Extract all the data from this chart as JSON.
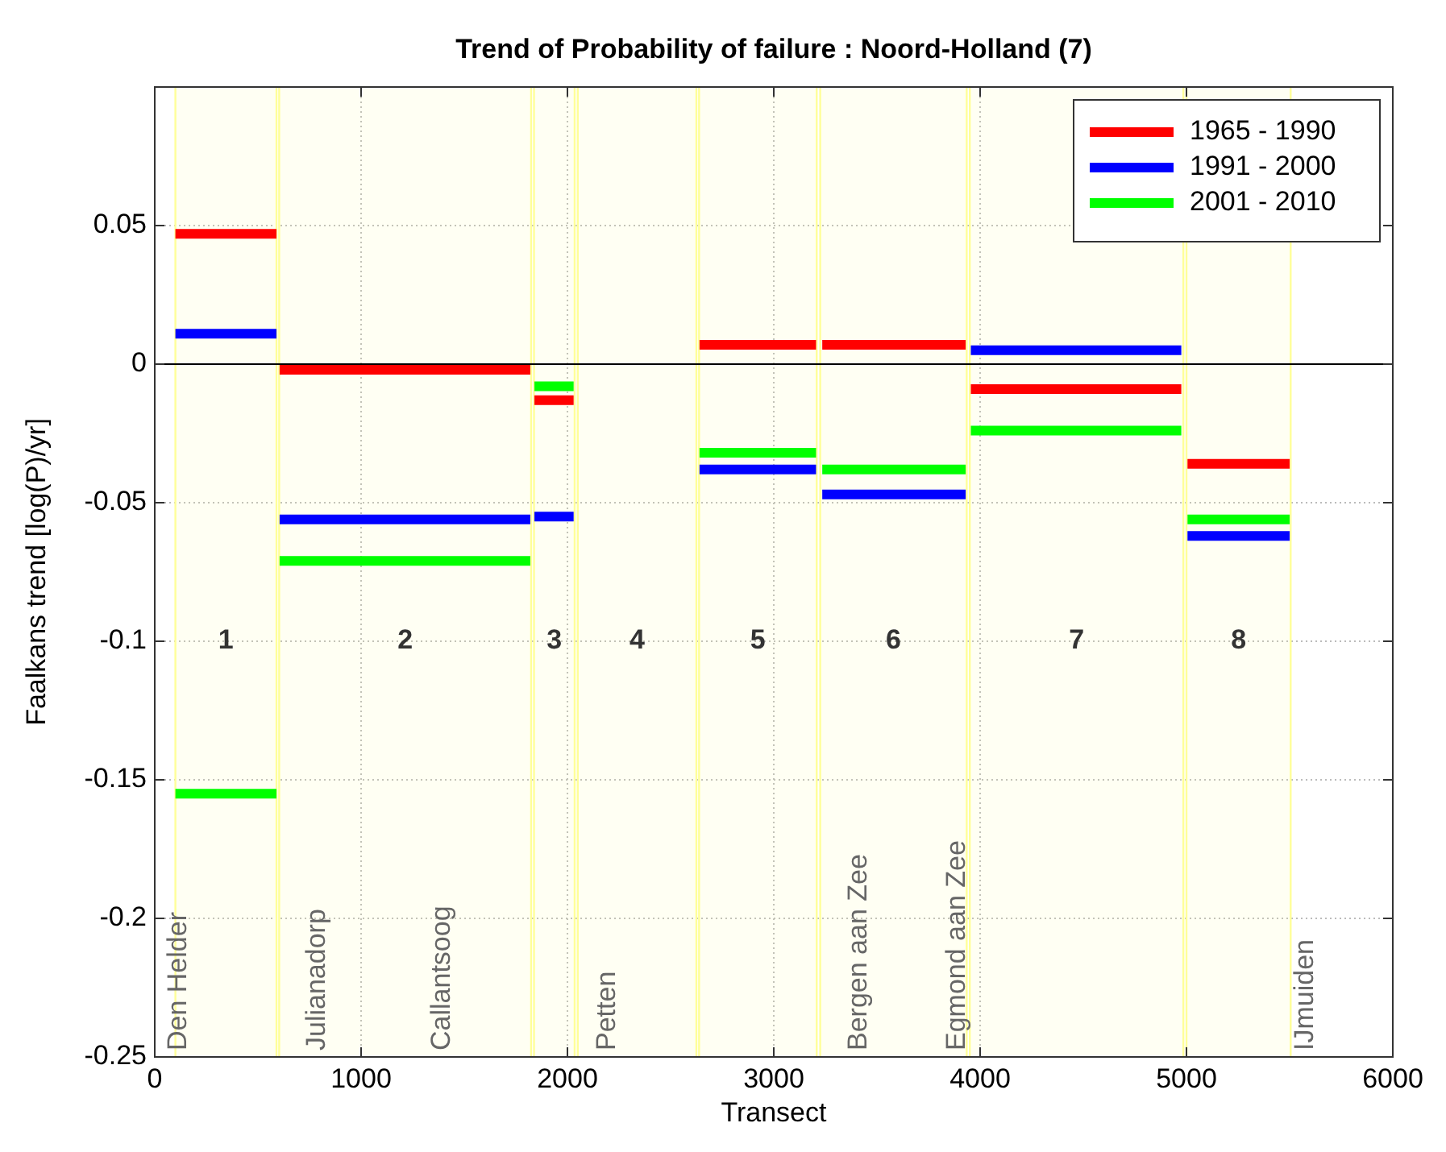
{
  "chart_data": {
    "type": "line",
    "title": "Trend of Probability of failure : Noord-Holland (7)",
    "xlabel": "Transect",
    "ylabel": "Faalkans trend [log(P)/yr]",
    "xlim": [
      0,
      6000
    ],
    "xticks": [
      0,
      1000,
      2000,
      3000,
      4000,
      5000,
      6000
    ],
    "ylim": [
      -0.25,
      0.1
    ],
    "yticks": [
      -0.25,
      -0.2,
      -0.15,
      -0.1,
      -0.05,
      0,
      0.05
    ],
    "grid": true,
    "legend": "top right",
    "marker": "none",
    "line_style": "solid",
    "series": [
      {
        "name": "1965 - 1990",
        "color": "#ff0000",
        "x": [
          100,
          590,
          null,
          605,
          1820,
          null,
          1840,
          2030,
          null,
          2640,
          3205,
          null,
          3235,
          3930,
          null,
          3955,
          4975,
          null,
          5005,
          5500
        ],
        "values": [
          0.047,
          0.047,
          null,
          -0.002,
          -0.002,
          null,
          -0.013,
          -0.013,
          null,
          0.007,
          0.007,
          null,
          0.007,
          0.007,
          null,
          -0.009,
          -0.009,
          null,
          -0.036,
          -0.036
        ]
      },
      {
        "name": "1991 - 2000",
        "color": "#0000ff",
        "x": [
          100,
          590,
          null,
          605,
          1820,
          null,
          1840,
          2030,
          null,
          2640,
          3205,
          null,
          3235,
          3930,
          null,
          3955,
          4975,
          null,
          5005,
          5500
        ],
        "values": [
          0.011,
          0.011,
          null,
          -0.056,
          -0.056,
          null,
          -0.055,
          -0.055,
          null,
          -0.038,
          -0.038,
          null,
          -0.047,
          -0.047,
          null,
          0.005,
          0.005,
          null,
          -0.062,
          -0.062
        ]
      },
      {
        "name": "2001 - 2010",
        "color": "#00ff00",
        "x": [
          100,
          590,
          null,
          605,
          1820,
          null,
          1840,
          2030,
          null,
          2640,
          3205,
          null,
          3235,
          3930,
          null,
          3955,
          4975,
          null,
          5005,
          5500
        ],
        "values": [
          -0.155,
          -0.155,
          null,
          -0.071,
          -0.071,
          null,
          -0.008,
          -0.008,
          null,
          -0.032,
          -0.032,
          null,
          -0.038,
          -0.038,
          null,
          -0.024,
          -0.024,
          null,
          -0.056,
          -0.056
        ]
      }
    ],
    "ref_lines": [
      {
        "axis": "y",
        "value": 0,
        "color": "#000000"
      }
    ],
    "bands": [
      {
        "axis": "x",
        "from": 100,
        "to": 590,
        "label": "1",
        "color": "#ffff99"
      },
      {
        "axis": "x",
        "from": 603,
        "to": 1824,
        "label": "2",
        "color": "#ffff99"
      },
      {
        "axis": "x",
        "from": 1838,
        "to": 2035,
        "label": "3",
        "color": "#ffff99"
      },
      {
        "axis": "x",
        "from": 2050,
        "to": 2625,
        "label": "4",
        "color": "#ffff99"
      },
      {
        "axis": "x",
        "from": 2638,
        "to": 3208,
        "label": "5",
        "color": "#ffff99"
      },
      {
        "axis": "x",
        "from": 3225,
        "to": 3935,
        "label": "6",
        "color": "#ffff99"
      },
      {
        "axis": "x",
        "from": 3950,
        "to": 4985,
        "label": "7",
        "color": "#ffff99"
      },
      {
        "axis": "x",
        "from": 5000,
        "to": 5505,
        "label": "8",
        "color": "#ffff99"
      }
    ],
    "annotations": [
      "Den Helder",
      "Julianadorp",
      "Callantsoog",
      "Petten",
      "Bergen aan Zee",
      "Egmond aan Zee",
      "IJmuiden"
    ]
  }
}
